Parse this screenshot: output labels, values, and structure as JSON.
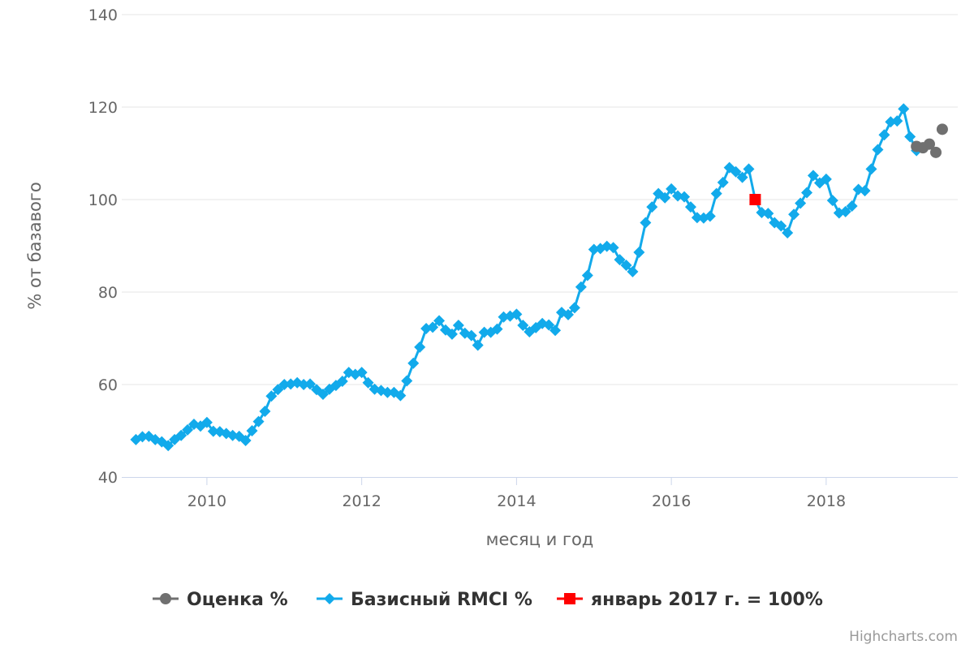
{
  "chart_data": {
    "type": "line",
    "title": "",
    "xlabel": "месяц и год",
    "ylabel": "% от базавого",
    "xlim": [
      2008.9,
      2019.7
    ],
    "ylim": [
      40,
      140
    ],
    "yticks": [
      40,
      60,
      80,
      100,
      120,
      140
    ],
    "xticks": [
      2010,
      2012,
      2014,
      2016,
      2018
    ],
    "grid": "horizontal",
    "legend_position": "bottom-center",
    "credits": "Highcharts.com",
    "series": [
      {
        "name": "Оценка %",
        "color": "#707070",
        "marker": "circle",
        "line": "none",
        "points": [
          [
            2019.167,
            111.5
          ],
          [
            2019.25,
            111.2
          ],
          [
            2019.333,
            112.0
          ],
          [
            2019.417,
            110.2
          ],
          [
            2019.5,
            115.2
          ]
        ]
      },
      {
        "name": "Базисный RMCI %",
        "color": "#12aaeb",
        "marker": "diamond",
        "line": "solid",
        "points": [
          [
            2009.083,
            48.1
          ],
          [
            2009.167,
            48.7
          ],
          [
            2009.25,
            48.8
          ],
          [
            2009.333,
            48.1
          ],
          [
            2009.417,
            47.6
          ],
          [
            2009.5,
            46.8
          ],
          [
            2009.583,
            48.1
          ],
          [
            2009.667,
            49.0
          ],
          [
            2009.75,
            50.2
          ],
          [
            2009.833,
            51.4
          ],
          [
            2009.917,
            51.0
          ],
          [
            2010.0,
            51.8
          ],
          [
            2010.083,
            49.9
          ],
          [
            2010.167,
            49.8
          ],
          [
            2010.25,
            49.4
          ],
          [
            2010.333,
            49.0
          ],
          [
            2010.417,
            48.8
          ],
          [
            2010.5,
            47.9
          ],
          [
            2010.583,
            50.0
          ],
          [
            2010.667,
            52.0
          ],
          [
            2010.75,
            54.2
          ],
          [
            2010.833,
            57.5
          ],
          [
            2010.917,
            58.9
          ],
          [
            2011.0,
            60.0
          ],
          [
            2011.083,
            60.1
          ],
          [
            2011.167,
            60.4
          ],
          [
            2011.25,
            60.0
          ],
          [
            2011.333,
            60.1
          ],
          [
            2011.417,
            58.9
          ],
          [
            2011.5,
            57.9
          ],
          [
            2011.583,
            59.0
          ],
          [
            2011.667,
            59.8
          ],
          [
            2011.75,
            60.7
          ],
          [
            2011.833,
            62.6
          ],
          [
            2011.917,
            62.2
          ],
          [
            2012.0,
            62.6
          ],
          [
            2012.083,
            60.4
          ],
          [
            2012.167,
            59.0
          ],
          [
            2012.25,
            58.7
          ],
          [
            2012.333,
            58.3
          ],
          [
            2012.417,
            58.3
          ],
          [
            2012.5,
            57.6
          ],
          [
            2012.583,
            60.8
          ],
          [
            2012.667,
            64.6
          ],
          [
            2012.75,
            68.1
          ],
          [
            2012.833,
            72.1
          ],
          [
            2012.917,
            72.4
          ],
          [
            2013.0,
            73.8
          ],
          [
            2013.083,
            71.8
          ],
          [
            2013.167,
            70.9
          ],
          [
            2013.25,
            72.8
          ],
          [
            2013.333,
            71.1
          ],
          [
            2013.417,
            70.6
          ],
          [
            2013.5,
            68.5
          ],
          [
            2013.583,
            71.3
          ],
          [
            2013.667,
            71.3
          ],
          [
            2013.75,
            72.0
          ],
          [
            2013.833,
            74.6
          ],
          [
            2013.917,
            74.8
          ],
          [
            2014.0,
            75.2
          ],
          [
            2014.083,
            72.8
          ],
          [
            2014.167,
            71.4
          ],
          [
            2014.25,
            72.3
          ],
          [
            2014.333,
            73.2
          ],
          [
            2014.417,
            72.9
          ],
          [
            2014.5,
            71.7
          ],
          [
            2014.583,
            75.6
          ],
          [
            2014.667,
            75.1
          ],
          [
            2014.75,
            76.6
          ],
          [
            2014.833,
            81.1
          ],
          [
            2014.917,
            83.6
          ],
          [
            2015.0,
            89.2
          ],
          [
            2015.083,
            89.4
          ],
          [
            2015.167,
            89.9
          ],
          [
            2015.25,
            89.6
          ],
          [
            2015.333,
            87.0
          ],
          [
            2015.417,
            85.8
          ],
          [
            2015.5,
            84.4
          ],
          [
            2015.583,
            88.6
          ],
          [
            2015.667,
            95.0
          ],
          [
            2015.75,
            98.4
          ],
          [
            2015.833,
            101.3
          ],
          [
            2015.917,
            100.4
          ],
          [
            2016.0,
            102.3
          ],
          [
            2016.083,
            100.8
          ],
          [
            2016.167,
            100.6
          ],
          [
            2016.25,
            98.4
          ],
          [
            2016.333,
            96.1
          ],
          [
            2016.417,
            96.0
          ],
          [
            2016.5,
            96.4
          ],
          [
            2016.583,
            101.3
          ],
          [
            2016.667,
            103.7
          ],
          [
            2016.75,
            106.9
          ],
          [
            2016.833,
            106.0
          ],
          [
            2016.917,
            104.8
          ],
          [
            2017.0,
            106.6
          ],
          [
            2017.083,
            100.0
          ],
          [
            2017.167,
            97.2
          ],
          [
            2017.25,
            97.0
          ],
          [
            2017.333,
            95.0
          ],
          [
            2017.417,
            94.3
          ],
          [
            2017.5,
            92.8
          ],
          [
            2017.583,
            96.8
          ],
          [
            2017.667,
            99.2
          ],
          [
            2017.75,
            101.5
          ],
          [
            2017.833,
            105.2
          ],
          [
            2017.917,
            103.6
          ],
          [
            2018.0,
            104.4
          ],
          [
            2018.083,
            99.8
          ],
          [
            2018.167,
            97.1
          ],
          [
            2018.25,
            97.4
          ],
          [
            2018.333,
            98.6
          ],
          [
            2018.417,
            102.2
          ],
          [
            2018.5,
            101.9
          ],
          [
            2018.583,
            106.6
          ],
          [
            2018.667,
            110.8
          ],
          [
            2018.75,
            114.0
          ],
          [
            2018.833,
            116.8
          ],
          [
            2018.917,
            117.0
          ],
          [
            2019.0,
            119.6
          ],
          [
            2019.083,
            113.6
          ],
          [
            2019.167,
            110.6
          ]
        ]
      },
      {
        "name": "январь 2017 г. = 100%",
        "color": "#ff0000",
        "marker": "square",
        "line": "none",
        "points": [
          [
            2017.083,
            100.0
          ]
        ]
      }
    ]
  }
}
